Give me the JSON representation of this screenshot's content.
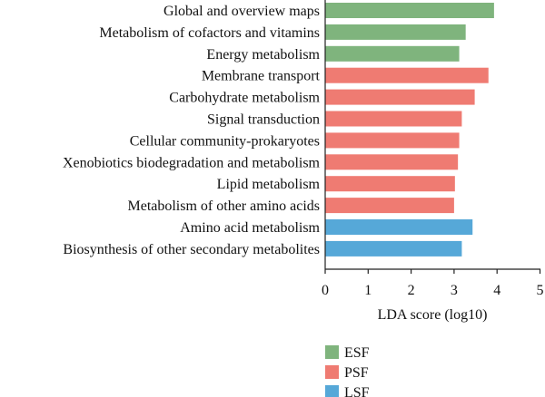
{
  "chart_data": {
    "type": "bar",
    "orientation": "horizontal",
    "categories": [
      "Global and overview maps",
      "Metabolism of cofactors and vitamins",
      "Energy metabolism",
      "Membrane transport",
      "Carbohydrate metabolism",
      "Signal transduction",
      "Cellular community-prokaryotes",
      "Xenobiotics biodegradation and metabolism",
      "Lipid metabolism",
      "Metabolism of other amino acids",
      "Amino acid metabolism",
      "Biosynthesis of other secondary metabolites"
    ],
    "values": [
      3.93,
      3.27,
      3.12,
      3.8,
      3.48,
      3.18,
      3.12,
      3.09,
      3.02,
      3.0,
      3.43,
      3.18
    ],
    "groups": [
      "ESF",
      "ESF",
      "ESF",
      "PSF",
      "PSF",
      "PSF",
      "PSF",
      "PSF",
      "PSF",
      "PSF",
      "LSF",
      "LSF"
    ],
    "series": [
      {
        "name": "ESF",
        "color": "#7fb47d"
      },
      {
        "name": "PSF",
        "color": "#ef7b72"
      },
      {
        "name": "LSF",
        "color": "#56a8d8"
      }
    ],
    "xlabel": "LDA score (log10)",
    "xlim": [
      0,
      5
    ],
    "xticks": [
      "0",
      "1",
      "2",
      "3",
      "4",
      "5"
    ],
    "grid": false,
    "legend_position": "bottom-center"
  }
}
